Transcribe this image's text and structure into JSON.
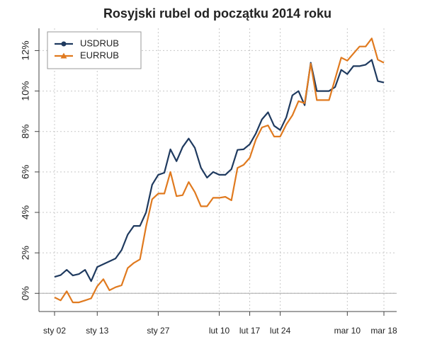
{
  "chart_data": {
    "type": "line",
    "title": "Rosyjski rubel od początku 2014 roku",
    "categories": [
      "sty 02",
      null,
      null,
      null,
      null,
      null,
      null,
      "sty 13",
      null,
      null,
      null,
      null,
      null,
      null,
      null,
      null,
      null,
      "sty 27",
      null,
      null,
      null,
      null,
      null,
      null,
      null,
      null,
      null,
      "lut 10",
      null,
      null,
      null,
      null,
      "lut 17",
      null,
      null,
      null,
      null,
      "lut 24",
      null,
      null,
      null,
      null,
      null,
      null,
      null,
      null,
      null,
      null,
      "mar 10",
      null,
      null,
      null,
      null,
      null,
      "mar 18"
    ],
    "series": [
      {
        "name": "USDRUB",
        "color": "#1f3a5f",
        "marker": "circle",
        "values": [
          0.81,
          0.9,
          1.16,
          0.88,
          0.95,
          1.16,
          0.6,
          1.3,
          1.44,
          1.58,
          1.72,
          2.14,
          2.9,
          3.33,
          3.33,
          4.0,
          5.37,
          5.86,
          5.96,
          7.12,
          6.53,
          7.23,
          7.65,
          7.19,
          6.21,
          5.72,
          6.0,
          5.86,
          5.86,
          6.14,
          7.09,
          7.12,
          7.37,
          7.9,
          8.6,
          8.95,
          8.28,
          8.07,
          8.7,
          9.79,
          10.0,
          9.3,
          11.4,
          10.0,
          10.0,
          10.0,
          10.2,
          11.05,
          10.84,
          11.23,
          11.23,
          11.3,
          11.54,
          10.49,
          10.42
        ]
      },
      {
        "name": "EURRUB",
        "color": "#e07a1f",
        "marker": "triangle",
        "values": [
          -0.2,
          -0.35,
          0.1,
          -0.45,
          -0.45,
          -0.35,
          -0.25,
          0.35,
          0.7,
          0.15,
          0.3,
          0.4,
          1.25,
          1.5,
          1.68,
          3.3,
          4.65,
          4.93,
          4.93,
          6.0,
          4.8,
          4.85,
          5.5,
          5.0,
          4.3,
          4.3,
          4.72,
          4.72,
          4.77,
          4.6,
          6.2,
          6.35,
          6.7,
          7.6,
          8.2,
          8.3,
          7.75,
          7.75,
          8.35,
          8.8,
          9.5,
          9.4,
          11.35,
          9.55,
          9.55,
          9.55,
          10.6,
          11.65,
          11.5,
          11.85,
          12.2,
          12.2,
          12.6,
          11.55,
          11.4
        ]
      }
    ],
    "ylim": [
      -0.9,
      13.1
    ],
    "yticks": [
      {
        "value": 0,
        "label": "0%"
      },
      {
        "value": 2,
        "label": "2%"
      },
      {
        "value": 4,
        "label": "4%"
      },
      {
        "value": 6,
        "label": "6%"
      },
      {
        "value": 8,
        "label": "8%"
      },
      {
        "value": 10,
        "label": "10%"
      },
      {
        "value": 12,
        "label": "12%"
      }
    ],
    "reference_line": 0,
    "grid": true,
    "legend": "top-left"
  }
}
